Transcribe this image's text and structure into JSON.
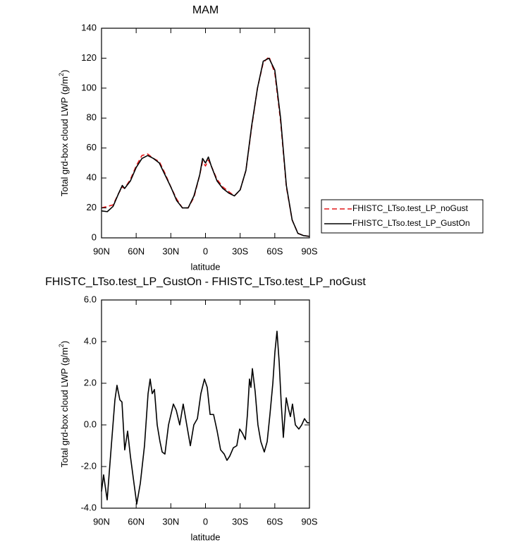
{
  "chart_data": [
    {
      "type": "line",
      "title": "MAM",
      "xlabel": "latitude",
      "ylabel": "Total grd-box cloud LWP (g/m",
      "ylabel_sup": "2",
      "ylabel_end": ")",
      "x": [
        90,
        85,
        80,
        75,
        72,
        70,
        65,
        60,
        55,
        50,
        45,
        40,
        35,
        30,
        25,
        20,
        15,
        10,
        5,
        2.5,
        0,
        -2.5,
        -5,
        -10,
        -15,
        -20,
        -25,
        -30,
        -35,
        -40,
        -45,
        -50,
        -55,
        -60,
        -65,
        -70,
        -75,
        -80,
        -85,
        -90
      ],
      "xlim": [
        90,
        -90
      ],
      "xticks": [
        {
          "value": 90,
          "label": "90N"
        },
        {
          "value": 60,
          "label": "60N"
        },
        {
          "value": 30,
          "label": "30N"
        },
        0,
        {
          "value": -30,
          "label": "30S"
        },
        {
          "value": -60,
          "label": "60S"
        },
        {
          "value": -90,
          "label": "90S"
        }
      ],
      "ylim": [
        0,
        140
      ],
      "yticks": [
        0,
        20,
        40,
        60,
        80,
        100,
        120,
        140
      ],
      "legend": "right",
      "series": [
        {
          "name": "FHISTC_LTso.test_LP_noGust",
          "color": "#e41a1c",
          "style": "dashed",
          "values": [
            20,
            21,
            22,
            30,
            34,
            33,
            39,
            48,
            55,
            56,
            53,
            51,
            43,
            34,
            26,
            20,
            20,
            27,
            42,
            51,
            48,
            52,
            48,
            39,
            34,
            31,
            28,
            32,
            45,
            74,
            100,
            117,
            121,
            110,
            78,
            34,
            12,
            3,
            1.5,
            1
          ]
        },
        {
          "name": "FHISTC_LTso.test_LP_GustOn",
          "color": "#000000",
          "style": "solid",
          "values": [
            18,
            17.5,
            21,
            30,
            35,
            33,
            38,
            47,
            53,
            55,
            53,
            50,
            42,
            34,
            25,
            20,
            20,
            28,
            42,
            53,
            50,
            54,
            48,
            38,
            33,
            30,
            28,
            32,
            45,
            75,
            100,
            118,
            120,
            112,
            80,
            35,
            12,
            3,
            1.5,
            1
          ]
        }
      ]
    },
    {
      "type": "line",
      "title": "FHISTC_LTso.test_LP_GustOn - FHISTC_LTso.test_LP_noGust",
      "xlabel": "latitude",
      "ylabel": "Total grd-box cloud LWP (g/m",
      "ylabel_sup": "2",
      "ylabel_end": ")",
      "x": [
        90,
        88.2,
        85.1,
        81.5,
        78.4,
        76.6,
        74.1,
        72.3,
        69.9,
        67.4,
        65.0,
        61.9,
        59.5,
        56.4,
        52.8,
        49.7,
        47.9,
        46.1,
        44.2,
        41.8,
        39.4,
        37.5,
        35.1,
        32.0,
        27.8,
        25.3,
        22.3,
        19.3,
        16.2,
        13.1,
        10.1,
        7.0,
        4.0,
        0.9,
        -1.5,
        -4.0,
        -7.0,
        -10.1,
        -13.1,
        -16.2,
        -18.6,
        -21.0,
        -24.1,
        -27.1,
        -29.6,
        -32.0,
        -34.5,
        -36.3,
        -38.1,
        -39.3,
        -40.6,
        -43.0,
        -45.4,
        -47.9,
        -50.9,
        -53.4,
        -55.8,
        -58.3,
        -60.1,
        -61.9,
        -63.8,
        -65.6,
        -67.4,
        -69.9,
        -71.7,
        -73.5,
        -75.3,
        -77.8,
        -80.8,
        -83.3,
        -85.7,
        -88.2,
        -90
      ],
      "xlim": [
        90,
        -90
      ],
      "xticks": [
        {
          "value": 90,
          "label": "90N"
        },
        {
          "value": 60,
          "label": "60N"
        },
        {
          "value": 30,
          "label": "30N"
        },
        0,
        {
          "value": -30,
          "label": "30S"
        },
        {
          "value": -60,
          "label": "60S"
        },
        {
          "value": -90,
          "label": "90S"
        }
      ],
      "ylim": [
        -4,
        6
      ],
      "yticks": [
        {
          "value": -4,
          "label": "-4.0"
        },
        {
          "value": -2,
          "label": "-2.0"
        },
        {
          "value": 0,
          "label": "0.0"
        },
        {
          "value": 2,
          "label": "2.0"
        },
        {
          "value": 4,
          "label": "4.0"
        },
        {
          "value": 6,
          "label": "6.0"
        }
      ],
      "series": [
        {
          "color": "#000000",
          "style": "solid",
          "values": [
            -3.2,
            -2.4,
            -3.6,
            -1.0,
            1.2,
            1.9,
            1.2,
            1.1,
            -1.2,
            -0.3,
            -1.5,
            -2.8,
            -3.8,
            -2.8,
            -1.0,
            1.5,
            2.2,
            1.5,
            1.7,
            0.0,
            -0.8,
            -1.3,
            -1.4,
            0.0,
            1.0,
            0.7,
            0.0,
            1.0,
            0.0,
            -1.0,
            0.0,
            0.3,
            1.5,
            2.2,
            1.8,
            0.5,
            0.5,
            -0.3,
            -1.2,
            -1.4,
            -1.7,
            -1.5,
            -1.1,
            -1.0,
            -0.2,
            -0.4,
            -0.7,
            0.5,
            2.2,
            1.8,
            2.7,
            1.6,
            0.0,
            -0.8,
            -1.3,
            -0.8,
            0.5,
            2.0,
            3.5,
            4.5,
            3.0,
            1.0,
            -0.6,
            1.3,
            0.8,
            0.4,
            1.0,
            0.0,
            -0.2,
            0.0,
            0.3,
            0.1,
            0.1
          ]
        }
      ]
    }
  ]
}
